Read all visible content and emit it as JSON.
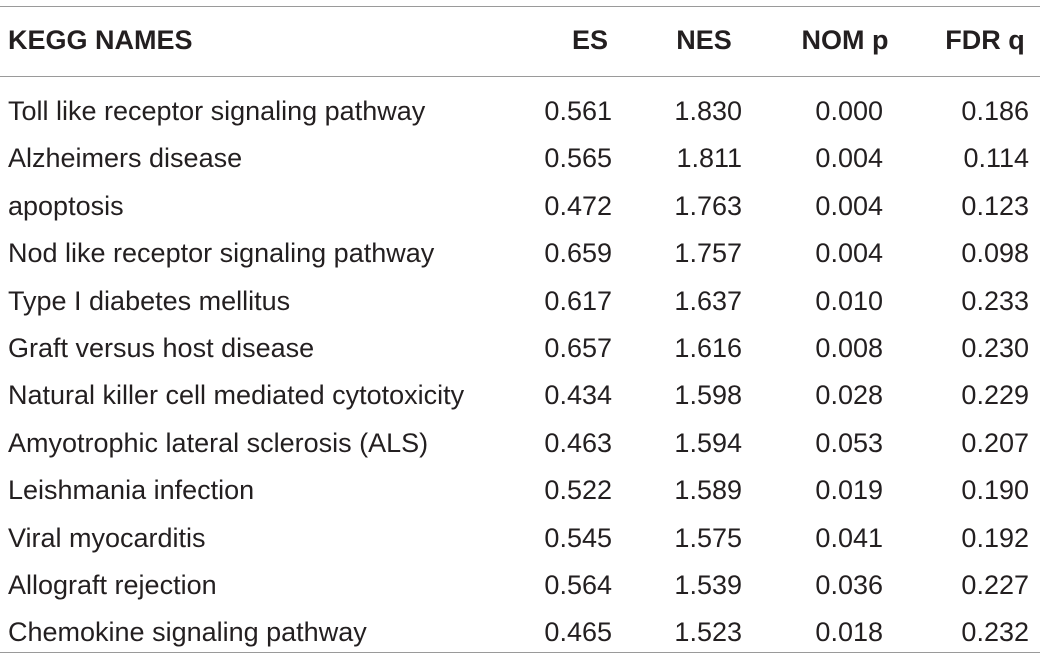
{
  "table": {
    "headers": {
      "name": "KEGG NAMES",
      "es": "ES",
      "nes": "NES",
      "nom_p": "NOM p",
      "fdr_q": "FDR q"
    },
    "rows": [
      {
        "name": "Toll like receptor signaling pathway",
        "es": "0.561",
        "nes": "1.830",
        "nom_p": "0.000",
        "fdr_q": "0.186"
      },
      {
        "name": "Alzheimers disease",
        "es": "0.565",
        "nes": "1.811",
        "nom_p": "0.004",
        "fdr_q": "0.114"
      },
      {
        "name": "apoptosis",
        "es": "0.472",
        "nes": "1.763",
        "nom_p": "0.004",
        "fdr_q": "0.123"
      },
      {
        "name": "Nod like receptor signaling pathway",
        "es": "0.659",
        "nes": "1.757",
        "nom_p": "0.004",
        "fdr_q": "0.098"
      },
      {
        "name": "Type I diabetes mellitus",
        "es": "0.617",
        "nes": "1.637",
        "nom_p": "0.010",
        "fdr_q": "0.233"
      },
      {
        "name": "Graft versus host disease",
        "es": "0.657",
        "nes": "1.616",
        "nom_p": "0.008",
        "fdr_q": "0.230"
      },
      {
        "name": "Natural killer cell mediated cytotoxicity",
        "es": "0.434",
        "nes": "1.598",
        "nom_p": "0.028",
        "fdr_q": "0.229"
      },
      {
        "name": "Amyotrophic lateral sclerosis (ALS)",
        "es": "0.463",
        "nes": "1.594",
        "nom_p": "0.053",
        "fdr_q": "0.207"
      },
      {
        "name": "Leishmania infection",
        "es": "0.522",
        "nes": "1.589",
        "nom_p": "0.019",
        "fdr_q": "0.190"
      },
      {
        "name": "Viral myocarditis",
        "es": "0.545",
        "nes": "1.575",
        "nom_p": "0.041",
        "fdr_q": "0.192"
      },
      {
        "name": "Allograft rejection",
        "es": "0.564",
        "nes": "1.539",
        "nom_p": "0.036",
        "fdr_q": "0.227"
      },
      {
        "name": "Chemokine signaling pathway",
        "es": "0.465",
        "nes": "1.523",
        "nom_p": "0.018",
        "fdr_q": "0.232"
      }
    ]
  }
}
